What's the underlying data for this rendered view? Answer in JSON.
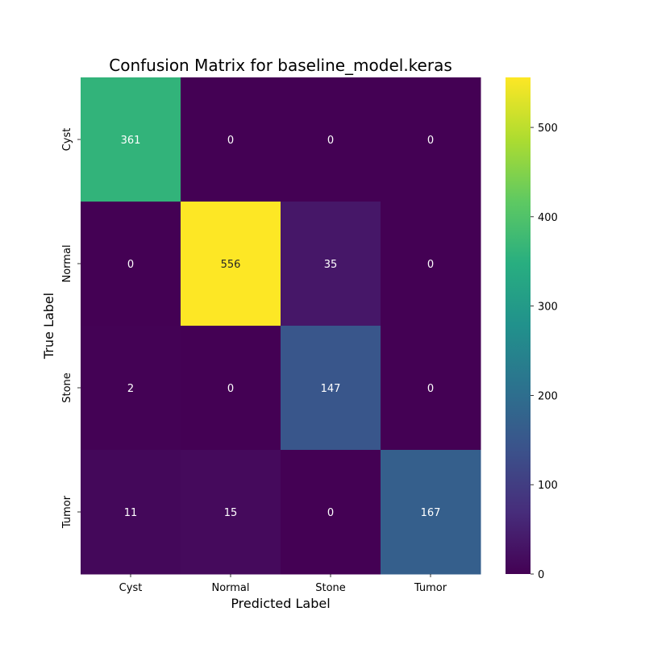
{
  "chart_data": {
    "type": "heatmap",
    "title": "Confusion Matrix for baseline_model.keras",
    "xlabel": "Predicted Label",
    "ylabel": "True Label",
    "x_categories": [
      "Cyst",
      "Normal",
      "Stone",
      "Tumor"
    ],
    "y_categories": [
      "Cyst",
      "Normal",
      "Stone",
      "Tumor"
    ],
    "values": [
      [
        361,
        0,
        0,
        0
      ],
      [
        0,
        556,
        35,
        0
      ],
      [
        2,
        0,
        147,
        0
      ],
      [
        11,
        15,
        0,
        167
      ]
    ],
    "colormap": "viridis",
    "color_range": [
      0,
      556
    ],
    "colorbar": {
      "ticks": [
        0,
        100,
        200,
        300,
        400,
        500
      ],
      "tick_labels": [
        "0",
        "100",
        "200",
        "300",
        "400",
        "500"
      ]
    }
  }
}
